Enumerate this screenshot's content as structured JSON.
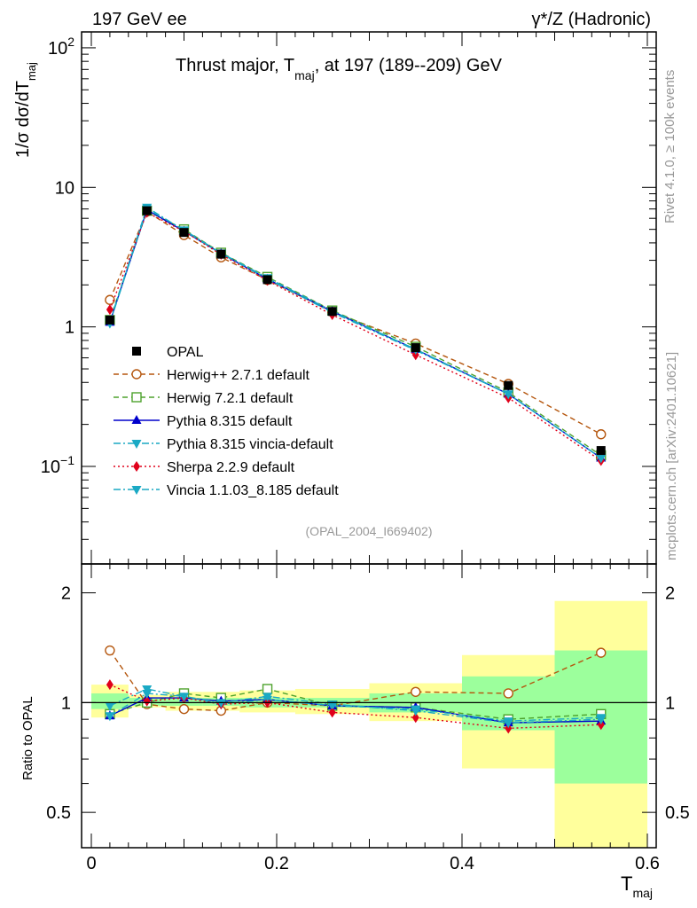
{
  "header": {
    "left": "197 GeV ee",
    "right": "γ*/Z (Hadronic)",
    "title_main": "Thrust major, T",
    "title_sub": "maj",
    "title_rest": ", at 197 (189--209) GeV"
  },
  "side": {
    "rivet": "Rivet 4.1.0, ≥ 100k events",
    "mcplots": "mcplots.cern.ch [arXiv:2401.10621]"
  },
  "analysis_id": "(OPAL_2004_I669402)",
  "axes": {
    "ylabel_main_prefix": "1/σ  dσ/dT",
    "ylabel_main_sub": "maj",
    "ylabel_ratio": "Ratio to OPAL",
    "xlabel_main": "T",
    "xlabel_sub": "maj",
    "main_yticks": [
      {
        "value": 0.1,
        "base": "10",
        "exp": "−1"
      },
      {
        "value": 1,
        "base": "1",
        "exp": ""
      },
      {
        "value": 10,
        "base": "10",
        "exp": ""
      },
      {
        "value": 100,
        "base": "10",
        "exp": "2"
      }
    ],
    "ratio_yticks": [
      {
        "value": 0.5,
        "label": "0.5"
      },
      {
        "value": 1,
        "label": "1"
      },
      {
        "value": 2,
        "label": "2"
      }
    ],
    "xticks": [
      {
        "value": 0,
        "label": "0"
      },
      {
        "value": 0.2,
        "label": "0.2"
      },
      {
        "value": 0.4,
        "label": "0.4"
      },
      {
        "value": 0.6,
        "label": "0.6"
      }
    ]
  },
  "colors": {
    "opal": "#000000",
    "herwigpp": "#b5570f",
    "herwig7": "#4ea22d",
    "pythia": "#0000cc",
    "vincia": "#1aa9c4",
    "sherpa": "#e0001a",
    "band_inner": "#9cff9c",
    "band_outer": "#ffff9c"
  },
  "chart_data": {
    "type": "line",
    "title": "Thrust major, T_maj, at 197 (189--209) GeV",
    "xlabel": "T_maj",
    "ylabel": "1/σ dσ/dT_maj",
    "xlim": [
      0,
      0.6
    ],
    "ylim_main": [
      0.02,
      130
    ],
    "yscale_main": "log",
    "ylim_ratio": [
      0.4,
      2.4
    ],
    "yscale_ratio": "log",
    "bins": [
      [
        0,
        0.04
      ],
      [
        0.04,
        0.08
      ],
      [
        0.08,
        0.12
      ],
      [
        0.12,
        0.16
      ],
      [
        0.16,
        0.22
      ],
      [
        0.22,
        0.3
      ],
      [
        0.3,
        0.4
      ],
      [
        0.4,
        0.5
      ],
      [
        0.5,
        0.6
      ]
    ],
    "x": [
      0.02,
      0.06,
      0.1,
      0.14,
      0.19,
      0.26,
      0.35,
      0.45,
      0.55
    ],
    "data": {
      "name": "OPAL",
      "values": [
        1.12,
        6.8,
        4.75,
        3.32,
        2.18,
        1.29,
        0.71,
        0.38,
        0.13
      ],
      "ratio_band_inner": [
        [
          0.96,
          1.06
        ],
        [
          0.98,
          1.03
        ],
        [
          0.98,
          1.03
        ],
        [
          0.98,
          1.03
        ],
        [
          0.97,
          1.03
        ],
        [
          0.97,
          1.03
        ],
        [
          0.94,
          1.06
        ],
        [
          0.84,
          1.18
        ],
        [
          0.6,
          1.39
        ]
      ],
      "ratio_band_outer": [
        [
          0.91,
          1.12
        ],
        [
          0.97,
          1.05
        ],
        [
          0.95,
          1.07
        ],
        [
          0.95,
          1.07
        ],
        [
          0.94,
          1.08
        ],
        [
          0.93,
          1.09
        ],
        [
          0.89,
          1.13
        ],
        [
          0.66,
          1.35
        ],
        [
          0.4,
          1.9
        ]
      ]
    },
    "series": [
      {
        "name": "Herwig++ 2.7.1 default",
        "key": "herwigpp",
        "marker": "circle-open",
        "dash": "6,4",
        "values": [
          1.56,
          6.7,
          4.55,
          3.15,
          2.17,
          1.28,
          0.76,
          0.39,
          0.17
        ],
        "ratio": [
          1.39,
          0.99,
          0.96,
          0.95,
          1.0,
          0.98,
          1.07,
          1.06,
          1.37
        ]
      },
      {
        "name": "Herwig 7.2.1 default",
        "key": "herwig7",
        "marker": "square-open",
        "dash": "6,4",
        "values": [
          1.12,
          6.8,
          5.0,
          3.4,
          2.28,
          1.31,
          0.72,
          0.34,
          0.12
        ],
        "ratio": [
          0.93,
          1.0,
          1.06,
          1.03,
          1.09,
          0.98,
          0.97,
          0.9,
          0.93
        ]
      },
      {
        "name": "Pythia 8.315 default",
        "key": "pythia",
        "marker": "triangle-up",
        "dash": "",
        "values": [
          1.08,
          6.9,
          4.85,
          3.36,
          2.2,
          1.29,
          0.69,
          0.33,
          0.115
        ],
        "ratio": [
          0.92,
          1.03,
          1.03,
          1.01,
          1.02,
          0.98,
          0.97,
          0.88,
          0.89
        ]
      },
      {
        "name": "Pythia 8.315 vincia-default",
        "key": "vincia",
        "marker": "triangle-down",
        "dash": "8,3,2,3",
        "values": [
          1.09,
          7.2,
          4.9,
          3.35,
          2.2,
          1.27,
          0.68,
          0.33,
          0.115
        ],
        "ratio": [
          0.98,
          1.09,
          1.04,
          0.99,
          1.02,
          0.98,
          0.96,
          0.89,
          0.91
        ]
      },
      {
        "name": "Sherpa 2.2.9 default",
        "key": "sherpa",
        "marker": "diamond",
        "dash": "2,3",
        "values": [
          1.33,
          6.6,
          4.85,
          3.3,
          2.15,
          1.22,
          0.63,
          0.31,
          0.11
        ],
        "ratio": [
          1.12,
          1.01,
          1.03,
          0.99,
          1.0,
          0.94,
          0.91,
          0.85,
          0.87
        ]
      },
      {
        "name": "Vincia 1.1.03_8.185 default",
        "key": "vincia",
        "marker": "triangle-down",
        "dash": "8,3,2,3",
        "values": [
          1.06,
          7.0,
          4.95,
          3.38,
          2.25,
          1.3,
          0.69,
          0.33,
          0.115
        ],
        "ratio": [
          0.92,
          1.06,
          1.04,
          1.0,
          1.04,
          0.99,
          0.95,
          0.88,
          0.9
        ]
      }
    ]
  }
}
